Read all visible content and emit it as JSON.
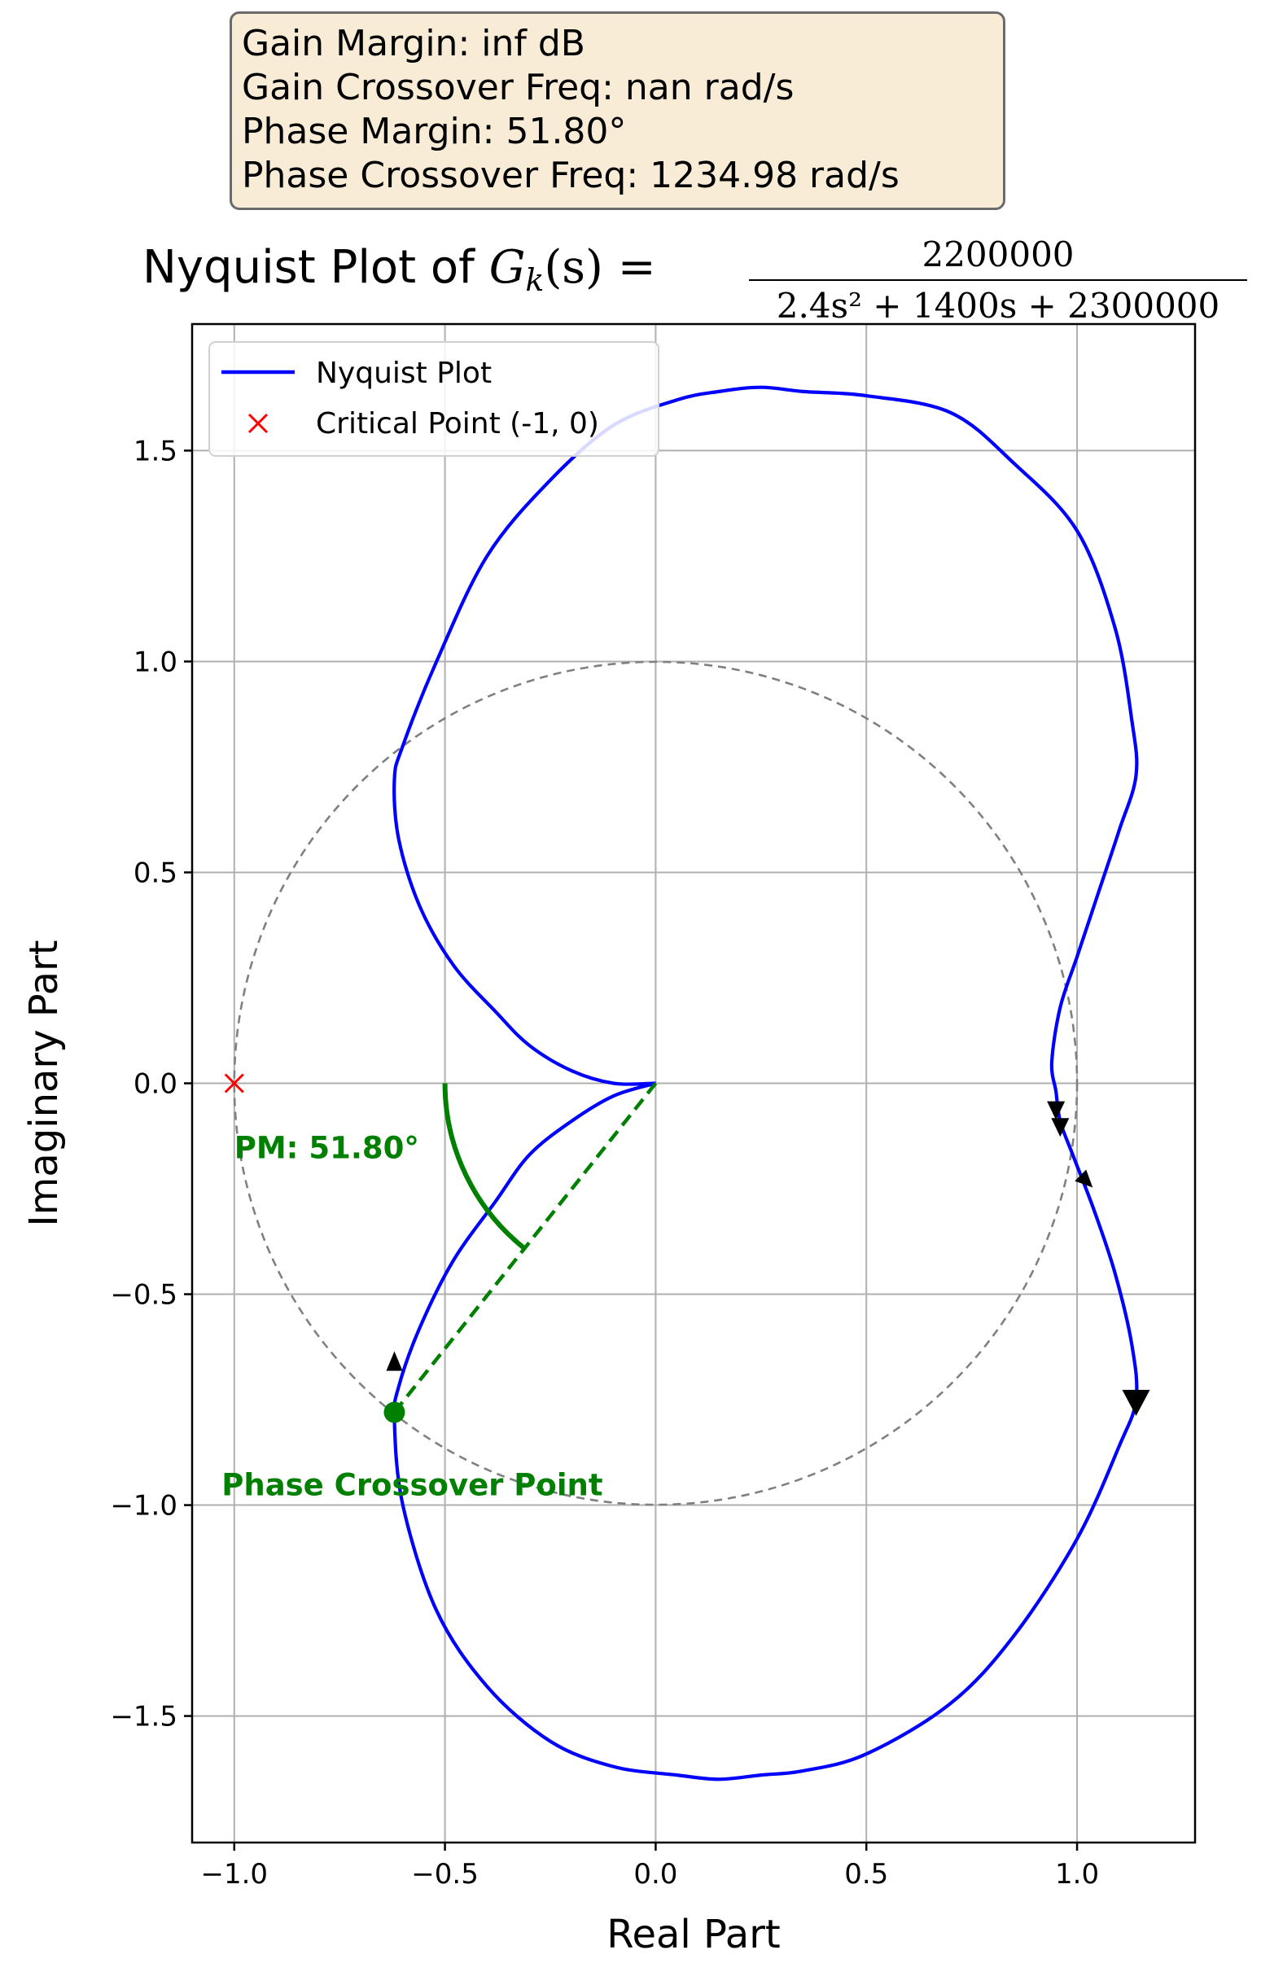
{
  "info_box": {
    "gain_margin": "Gain Margin: inf dB",
    "gain_crossover": "Gain Crossover Freq: nan rad/s",
    "phase_margin": "Phase Margin: 51.80°",
    "phase_crossover": "Phase Crossover Freq: 1234.98 rad/s"
  },
  "title": {
    "prefix": "Nyquist Plot of ",
    "g": "G",
    "sub": "k",
    "arg": "(s) =",
    "numerator": "2200000",
    "denominator": "2.4s² + 1400s + 2300000"
  },
  "colors": {
    "curve": "#0000ff",
    "critical": "#ff0000",
    "pm": "#008000",
    "unit_circle": "#808080",
    "grid": "#b0b0b0",
    "info_bg": "#f9ecd6"
  },
  "chart_data": {
    "type": "line",
    "xlabel": "Real Part",
    "ylabel": "Imaginary Part",
    "xlim": [
      -1.1,
      1.28
    ],
    "ylim": [
      -1.8,
      1.8
    ],
    "xticks": [
      -1.0,
      -0.5,
      0.0,
      0.5,
      1.0
    ],
    "xtick_labels": [
      "−1.0",
      "−0.5",
      "0.0",
      "0.5",
      "1.0"
    ],
    "yticks": [
      1.5,
      1.0,
      0.5,
      0.0,
      -0.5,
      -1.0,
      -1.5
    ],
    "ytick_labels": [
      "1.5",
      "1.0",
      "0.5",
      "0.0",
      "−0.5",
      "−1.0",
      "−1.5"
    ],
    "grid": true,
    "legend_position": "top-left",
    "legend": [
      {
        "label": "Nyquist Plot",
        "marker": "line",
        "color": "#0000ff"
      },
      {
        "label": "Critical Point (-1, 0)",
        "marker": "x",
        "color": "#ff0000"
      }
    ],
    "series": [
      {
        "name": "Nyquist Plot",
        "x": [
          0.0,
          -0.1,
          -0.2,
          -0.3,
          -0.38,
          -0.48,
          -0.56,
          -0.61,
          -0.62,
          -0.6,
          -0.52,
          -0.4,
          -0.25,
          -0.1,
          0.05,
          0.15,
          0.25,
          0.35,
          0.5,
          0.7,
          0.85,
          1.0,
          1.1,
          1.14,
          1.13,
          1.09,
          1.04,
          0.99,
          0.96,
          0.95,
          0.94,
          0.96,
          1.0,
          1.05,
          1.1,
          1.14,
          1.13,
          1.09,
          1.0,
          0.85,
          0.7,
          0.5,
          0.35,
          0.25,
          0.15,
          0.05,
          -0.1,
          -0.25,
          -0.4,
          -0.52,
          -0.6,
          -0.62,
          -0.61,
          -0.56,
          -0.48,
          -0.38,
          -0.3,
          -0.2,
          -0.1,
          0.0
        ],
        "y": [
          0.0,
          -0.03,
          -0.09,
          -0.17,
          -0.28,
          -0.42,
          -0.58,
          -0.72,
          -0.8,
          -1.0,
          -1.25,
          -1.43,
          -1.56,
          -1.62,
          -1.64,
          -1.65,
          -1.64,
          -1.63,
          -1.59,
          -1.47,
          -1.31,
          -1.08,
          -0.86,
          -0.75,
          -0.62,
          -0.45,
          -0.3,
          -0.17,
          -0.09,
          -0.02,
          0.05,
          0.18,
          0.3,
          0.45,
          0.6,
          0.73,
          0.86,
          1.08,
          1.31,
          1.47,
          1.59,
          1.63,
          1.64,
          1.65,
          1.64,
          1.62,
          1.56,
          1.43,
          1.25,
          1.0,
          0.8,
          0.72,
          0.58,
          0.42,
          0.28,
          0.17,
          0.09,
          0.03,
          0.0,
          0.0
        ]
      }
    ],
    "unit_circle": {
      "center": [
        0,
        0
      ],
      "radius": 1.0,
      "style": "dashed"
    },
    "critical_point": {
      "x": -1.0,
      "y": 0.0
    },
    "phase_crossover_point": {
      "x": -0.62,
      "y": -0.78,
      "label": "Phase Crossover Point"
    },
    "pm_annotation": {
      "label": "PM: 51.80°",
      "angle_deg": 51.8,
      "arc_radius": 0.5
    },
    "arrows": [
      {
        "x": -0.62,
        "y": -0.67,
        "direction": "up"
      },
      {
        "x": 0.95,
        "y": -0.06,
        "direction": "down"
      },
      {
        "x": 0.96,
        "y": -0.1,
        "direction": "down"
      },
      {
        "x": 1.01,
        "y": -0.22,
        "direction": "down-right"
      },
      {
        "x": 1.14,
        "y": -0.75,
        "direction": "down"
      }
    ]
  }
}
